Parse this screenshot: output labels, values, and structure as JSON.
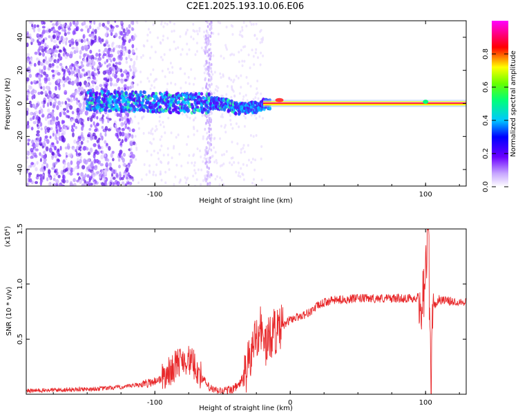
{
  "title": "C2E1.2025.193.10.06.E06",
  "chart_data": [
    {
      "type": "heatmap",
      "xlabel": "Height of straight line (km)",
      "ylabel": "Frequency (Hz)",
      "xlim": [
        -195,
        130
      ],
      "ylim": [
        -50,
        50
      ],
      "xticks": [
        -100,
        0,
        100
      ],
      "xtick_labels": [
        "-100",
        "",
        "100"
      ],
      "yticks": [
        -40,
        -20,
        0,
        20,
        40
      ],
      "ytick_labels": [
        "-40",
        "-20",
        "0",
        "20",
        "40"
      ],
      "colorbar": {
        "label": "Normalized spectral amplitude",
        "range": [
          0,
          1
        ],
        "ticks": [
          0.0,
          0.2,
          0.4,
          0.6,
          0.8
        ],
        "tick_labels": [
          "0.0",
          "0.2",
          "0.4",
          "0.6",
          "0.8"
        ],
        "colormap": "rainbow (white-purple-blue-cyan-green-yellow-red-magenta)"
      },
      "ridge": {
        "x": [
          -195,
          -150,
          -130,
          -100,
          -80,
          -65,
          -50,
          -40,
          -30,
          -20,
          -15,
          -10,
          -5,
          0,
          10,
          50,
          100,
          130
        ],
        "freq": [
          2,
          2,
          1,
          1,
          0,
          0,
          0,
          -3,
          -3,
          -1,
          0,
          2,
          1,
          0,
          0,
          0,
          0,
          0
        ]
      },
      "features": [
        {
          "x_range": [
            -195,
            -140
          ],
          "description_level": "broad scattered low amplitude"
        },
        {
          "x_range": [
            -63,
            -58
          ],
          "description_level": "vertical noise streak"
        }
      ]
    },
    {
      "type": "line",
      "xlabel": "Height of straight line (km)",
      "ylabel": "SNR (10 * v/v)",
      "y_multiplier": "(x10⁴)",
      "xlim": [
        -195,
        130
      ],
      "ylim": [
        0,
        1.5
      ],
      "xticks": [
        -100,
        0,
        100
      ],
      "xtick_labels": [
        "-100",
        "0",
        "100"
      ],
      "yticks": [
        0.5,
        1.0,
        1.5
      ],
      "ytick_labels": [
        "0.5",
        "1.0",
        "1.5"
      ],
      "series": [
        {
          "color": "#e8282a",
          "x": [
            -195,
            -170,
            -140,
            -120,
            -105,
            -95,
            -88,
            -82,
            -78,
            -74,
            -70,
            -65,
            -60,
            -55,
            -50,
            -44,
            -38,
            -33,
            -30,
            -27,
            -25,
            -22,
            -20,
            -18,
            -15,
            -12,
            -10,
            -5,
            0,
            5,
            10,
            15,
            20,
            25,
            30,
            40,
            50,
            60,
            70,
            80,
            90,
            95,
            98,
            100,
            102,
            103,
            104,
            106,
            110,
            115,
            120,
            130
          ],
          "y": [
            0.03,
            0.04,
            0.05,
            0.07,
            0.1,
            0.14,
            0.22,
            0.3,
            0.32,
            0.3,
            0.25,
            0.15,
            0.06,
            0.03,
            0.03,
            0.04,
            0.08,
            0.2,
            0.3,
            0.45,
            0.55,
            0.6,
            0.52,
            0.45,
            0.5,
            0.6,
            0.55,
            0.62,
            0.68,
            0.7,
            0.72,
            0.75,
            0.8,
            0.83,
            0.85,
            0.86,
            0.87,
            0.87,
            0.87,
            0.87,
            0.87,
            0.88,
            0.92,
            1.15,
            1.5,
            0.85,
            0.15,
            0.8,
            0.86,
            0.85,
            0.84,
            0.84
          ]
        }
      ]
    }
  ]
}
